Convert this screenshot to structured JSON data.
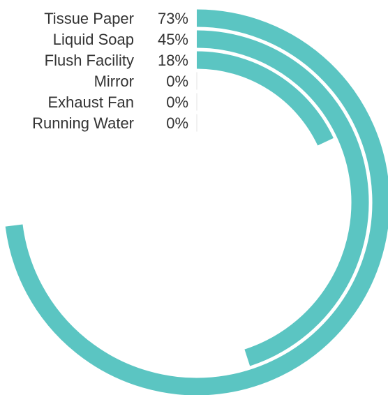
{
  "chart_data": {
    "type": "radial-bar",
    "categories": [
      "Tissue Paper",
      "Liquid Soap",
      "Flush Facility",
      "Mirror",
      "Exhaust Fan",
      "Running Water"
    ],
    "values": [
      73,
      45,
      18,
      0,
      0,
      0
    ],
    "value_labels": [
      "73%",
      "45%",
      "18%",
      "0%",
      "0%",
      "0%"
    ],
    "max": 100,
    "unit": "%",
    "color": "#5bc5c2",
    "title": "",
    "legend": "none",
    "grid": false
  }
}
